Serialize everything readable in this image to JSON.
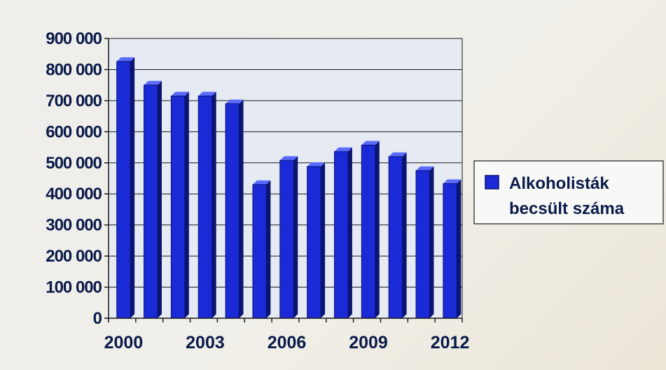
{
  "chart_data": {
    "type": "bar",
    "categories": [
      "2000",
      "2001",
      "2002",
      "2003",
      "2004",
      "2005",
      "2006",
      "2007",
      "2008",
      "2009",
      "2010",
      "2011",
      "2012"
    ],
    "x_tick_labels": [
      "2000",
      "2003",
      "2006",
      "2009",
      "2012"
    ],
    "series": [
      {
        "name": "Alkoholisták becsült száma",
        "values": [
          826000,
          750000,
          715000,
          715000,
          690000,
          430000,
          508000,
          488000,
          536000,
          557000,
          520000,
          475000,
          433000
        ]
      }
    ],
    "y_tick_labels": [
      "0",
      "100 000",
      "200 000",
      "300 000",
      "400 000",
      "500 000",
      "600 000",
      "700 000",
      "800 000",
      "900 000"
    ],
    "ylim": [
      0,
      900000
    ],
    "grid": true,
    "legend_position": "right",
    "legend_lines": [
      "Alkoholisták",
      "becsült száma"
    ],
    "colors": {
      "bar": "#1a2ad6",
      "bar_dark": "#0b1470",
      "bar_light": "#5a6cff",
      "grid": "#1a1a1a",
      "plot_bg": "#e6eaf2"
    }
  }
}
